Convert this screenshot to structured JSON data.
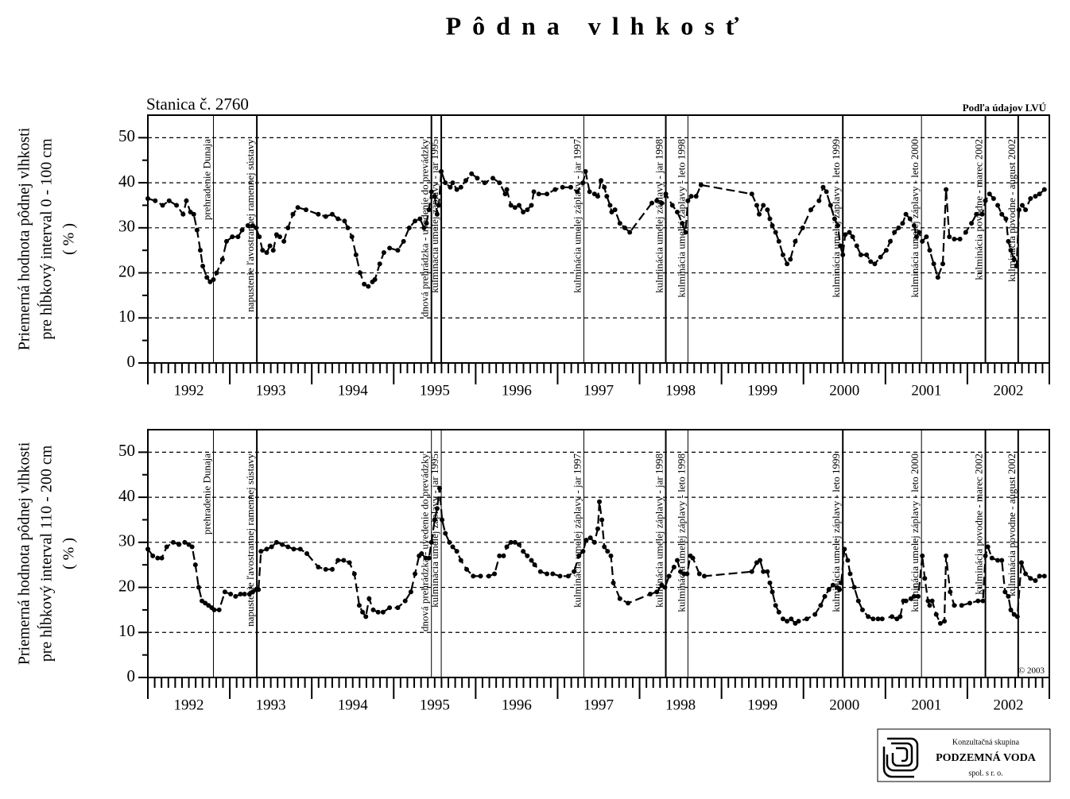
{
  "title": "Pôdna vlhkosť",
  "logo": {
    "line1": "Konzultačná skupina",
    "line2": "PODZEMNÁ VODA",
    "line3": "spol. s r. o."
  },
  "chart_data": [
    {
      "type": "line",
      "station": "Stanica č. 2760",
      "source": "Podľa údajov LVÚ",
      "y_label": [
        "Priemerná hodnota pôdnej vlhkosti",
        "pre hĺbkový interval 0 - 100 cm",
        "( % )"
      ],
      "xlim": [
        1992,
        2003
      ],
      "ylim": [
        0,
        55
      ],
      "yticks": [
        0,
        10,
        20,
        30,
        40,
        50
      ],
      "grid": true,
      "color": "#000000",
      "xticks": [
        {
          "value": 1992.5,
          "label": "1992"
        },
        {
          "value": 1993.5,
          "label": "1993"
        },
        {
          "value": 1994.5,
          "label": "1994"
        },
        {
          "value": 1995.5,
          "label": "1995"
        },
        {
          "value": 1996.5,
          "label": "1996"
        },
        {
          "value": 1997.5,
          "label": "1997"
        },
        {
          "value": 1998.5,
          "label": "1998"
        },
        {
          "value": 1999.5,
          "label": "1999"
        },
        {
          "value": 2000.5,
          "label": "2000"
        },
        {
          "value": 2001.5,
          "label": "2001"
        },
        {
          "value": 2002.5,
          "label": "2002"
        }
      ],
      "events": [
        {
          "x": 1992.8,
          "label": "prehradenie Dunaja",
          "width": 1
        },
        {
          "x": 1993.33,
          "label": "napustenie ľavostrannej ramennej sústavy",
          "width": 2
        },
        {
          "x": 1995.46,
          "label": "dnová prehrádzka - uvedenie do prevádzky",
          "width": 2
        },
        {
          "x": 1995.58,
          "label": "kulminácia umelej záplavy - jar 1995",
          "width": 2
        },
        {
          "x": 1997.32,
          "label": "kulminácia umelej záplavy - jar 1997",
          "width": 1
        },
        {
          "x": 1998.32,
          "label": "kulminácia umelej záplavy - jar 1998",
          "width": 2
        },
        {
          "x": 1998.59,
          "label": "kulminácia umelej záplavy - leto 1998",
          "width": 1
        },
        {
          "x": 2000.48,
          "label": "kulminácia umelej záplavy - leto 1999",
          "width": 2
        },
        {
          "x": 2001.44,
          "label": "kulminácia umelej záplavy - leto 2000",
          "width": 1
        },
        {
          "x": 2002.22,
          "label": "kulminácia povodne - marec 2002",
          "width": 2
        },
        {
          "x": 2002.62,
          "label": "kulminácia povodne - august 2002",
          "width": 2
        }
      ],
      "x": [
        1992.0,
        1992.09,
        1992.18,
        1992.26,
        1992.35,
        1992.43,
        1992.47,
        1992.52,
        1992.56,
        1992.6,
        1992.64,
        1992.67,
        1992.72,
        1992.76,
        1992.8,
        1992.84,
        1992.91,
        1992.96,
        1993.03,
        1993.1,
        1993.15,
        1993.22,
        1993.28,
        1993.32,
        1993.36,
        1993.4,
        1993.45,
        1993.49,
        1993.53,
        1993.57,
        1993.61,
        1993.66,
        1993.71,
        1993.77,
        1993.83,
        1993.93,
        1994.08,
        1994.17,
        1994.25,
        1994.32,
        1994.4,
        1994.44,
        1994.49,
        1994.54,
        1994.59,
        1994.64,
        1994.69,
        1994.74,
        1994.77,
        1994.83,
        1994.88,
        1994.95,
        1995.05,
        1995.12,
        1995.19,
        1995.26,
        1995.32,
        1995.37,
        1995.4,
        1995.43,
        1995.46,
        1995.5,
        1995.53,
        1995.55,
        1995.58,
        1995.63,
        1995.69,
        1995.72,
        1995.77,
        1995.82,
        1995.88,
        1995.95,
        1996.02,
        1996.11,
        1996.21,
        1996.29,
        1996.36,
        1996.38,
        1996.43,
        1996.48,
        1996.53,
        1996.58,
        1996.63,
        1996.68,
        1996.71,
        1996.77,
        1996.87,
        1996.97,
        1997.06,
        1997.16,
        1997.24,
        1997.31,
        1997.34,
        1997.39,
        1997.45,
        1997.49,
        1997.53,
        1997.57,
        1997.6,
        1997.64,
        1997.66,
        1997.7,
        1997.76,
        1997.82,
        1997.88,
        1998.15,
        1998.21,
        1998.27,
        1998.32,
        1998.4,
        1998.46,
        1998.52,
        1998.56,
        1998.59,
        1998.63,
        1998.69,
        1998.75,
        1999.37,
        1999.43,
        1999.46,
        1999.51,
        1999.56,
        1999.59,
        1999.62,
        1999.66,
        1999.7,
        1999.75,
        1999.8,
        1999.84,
        1999.9,
        1999.99,
        2000.09,
        2000.19,
        2000.24,
        2000.28,
        2000.33,
        2000.38,
        2000.42,
        2000.45,
        2000.48,
        2000.51,
        2000.56,
        2000.6,
        2000.65,
        2000.7,
        2000.77,
        2000.82,
        2000.87,
        2000.94,
        2001.01,
        2001.06,
        2001.11,
        2001.16,
        2001.21,
        2001.25,
        2001.3,
        2001.35,
        2001.38,
        2001.41,
        2001.45,
        2001.5,
        2001.54,
        2001.59,
        2001.64,
        2001.7,
        2001.74,
        2001.78,
        2001.84,
        2001.91,
        2001.98,
        2002.05,
        2002.11,
        2002.18,
        2002.22,
        2002.27,
        2002.32,
        2002.37,
        2002.42,
        2002.47,
        2002.5,
        2002.53,
        2002.57,
        2002.6,
        2002.63,
        2002.67,
        2002.71,
        2002.77,
        2002.83,
        2002.88,
        2002.94
      ],
      "values": [
        36.5,
        36,
        35,
        36,
        35,
        33,
        36,
        33.5,
        33,
        29.5,
        25,
        21.5,
        19,
        18,
        18.5,
        20,
        23,
        27,
        28,
        28,
        29.5,
        30.5,
        30.5,
        30,
        28,
        25,
        24.5,
        26,
        25,
        28.5,
        28,
        27,
        30,
        33,
        34.5,
        34,
        33,
        32.5,
        33,
        32,
        31.5,
        30,
        28,
        24,
        20,
        17.5,
        17,
        18,
        18.5,
        22,
        24.5,
        25.5,
        25,
        27,
        30,
        31.5,
        32,
        30,
        31,
        34,
        38,
        37,
        33,
        35,
        42.5,
        40,
        39,
        40,
        38.5,
        39,
        40.5,
        42,
        41,
        40,
        41,
        40,
        37.5,
        38.5,
        35,
        34.5,
        35,
        33.5,
        34,
        35,
        38,
        37.5,
        37.5,
        38.5,
        39,
        39,
        38,
        40,
        42.5,
        38,
        37.5,
        37,
        40.5,
        39,
        37,
        35,
        33.5,
        34,
        31,
        30,
        29,
        35.5,
        36,
        35.5,
        37.5,
        35,
        33.5,
        31,
        29,
        36,
        37,
        37,
        39.5,
        37.5,
        35,
        33,
        35,
        34,
        32,
        30.5,
        29,
        27,
        24,
        22,
        23,
        27,
        30,
        34,
        36,
        39,
        38,
        35,
        32,
        30.5,
        26,
        24,
        28.5,
        29,
        28,
        26,
        24,
        24,
        22.5,
        22,
        23.5,
        25,
        27,
        29,
        30,
        31,
        33,
        32,
        30.5,
        28,
        29,
        27,
        28,
        25,
        22,
        19,
        22,
        38.5,
        28,
        27.5,
        27.5,
        29,
        31,
        33,
        33,
        36,
        37.5,
        36.5,
        35,
        33,
        32,
        27,
        25,
        23,
        21.5,
        34,
        35,
        34,
        36.5,
        37,
        37.5,
        38.5
      ]
    },
    {
      "type": "line",
      "copyright": "© 2003",
      "y_label": [
        "Priemerná hodnota pôdnej vlhkosti",
        "pre hĺbkový interval 110 - 200 cm",
        "( % )"
      ],
      "xlim": [
        1992,
        2003
      ],
      "ylim": [
        0,
        55
      ],
      "yticks": [
        0,
        10,
        20,
        30,
        40,
        50
      ],
      "grid": true,
      "color": "#000000",
      "xticks": [
        {
          "value": 1992.5,
          "label": "1992"
        },
        {
          "value": 1993.5,
          "label": "1993"
        },
        {
          "value": 1994.5,
          "label": "1994"
        },
        {
          "value": 1995.5,
          "label": "1995"
        },
        {
          "value": 1996.5,
          "label": "1996"
        },
        {
          "value": 1997.5,
          "label": "1997"
        },
        {
          "value": 1998.5,
          "label": "1998"
        },
        {
          "value": 1999.5,
          "label": "1999"
        },
        {
          "value": 2000.5,
          "label": "2000"
        },
        {
          "value": 2001.5,
          "label": "2001"
        },
        {
          "value": 2002.5,
          "label": "2002"
        }
      ],
      "events": [
        {
          "x": 1992.8,
          "label": "prehradenie Dunaja",
          "width": 1
        },
        {
          "x": 1993.33,
          "label": "napustenie ľavostrannej ramennej sústavy",
          "width": 2
        },
        {
          "x": 1995.46,
          "label": "dnová prehrádzka - uvedenie do prevádzky",
          "width": 1
        },
        {
          "x": 1995.58,
          "label": "kulminácia umelej záplavy - jar 1995",
          "width": 1
        },
        {
          "x": 1997.32,
          "label": "kulminácia umelej záplavy - jar 1997",
          "width": 1
        },
        {
          "x": 1998.32,
          "label": "kulminácia umelej záplavy - jar 1998",
          "width": 2
        },
        {
          "x": 1998.59,
          "label": "kulminácia umelej záplavy - leto 1998",
          "width": 1
        },
        {
          "x": 2000.48,
          "label": "kulminácia umelej záplavy - leto 1999",
          "width": 2
        },
        {
          "x": 2001.44,
          "label": "kulminácia umelej záplavy - leto 2000",
          "width": 1
        },
        {
          "x": 2002.22,
          "label": "kulminácia povodne - marec 2002",
          "width": 2
        },
        {
          "x": 2002.62,
          "label": "kulminácia povodne - august 2002",
          "width": 2
        }
      ],
      "x": [
        1992.0,
        1992.06,
        1992.12,
        1992.17,
        1992.23,
        1992.31,
        1992.38,
        1992.45,
        1992.5,
        1992.54,
        1992.58,
        1992.62,
        1992.66,
        1992.7,
        1992.74,
        1992.78,
        1992.81,
        1992.87,
        1992.94,
        1993.01,
        1993.07,
        1993.13,
        1993.18,
        1993.24,
        1993.28,
        1993.32,
        1993.35,
        1993.38,
        1993.45,
        1993.51,
        1993.57,
        1993.64,
        1993.71,
        1993.78,
        1993.86,
        1993.94,
        1994.08,
        1994.17,
        1994.25,
        1994.32,
        1994.39,
        1994.46,
        1994.52,
        1994.58,
        1994.62,
        1994.66,
        1994.7,
        1994.75,
        1994.81,
        1994.87,
        1994.95,
        1995.05,
        1995.14,
        1995.21,
        1995.26,
        1995.31,
        1995.34,
        1995.39,
        1995.43,
        1995.46,
        1995.5,
        1995.53,
        1995.56,
        1995.59,
        1995.63,
        1995.68,
        1995.72,
        1995.77,
        1995.82,
        1995.89,
        1995.97,
        1996.06,
        1996.16,
        1996.23,
        1996.29,
        1996.34,
        1996.38,
        1996.43,
        1996.48,
        1996.53,
        1996.58,
        1996.63,
        1996.68,
        1996.72,
        1996.79,
        1996.87,
        1996.94,
        1997.03,
        1997.13,
        1997.2,
        1997.26,
        1997.31,
        1997.35,
        1997.4,
        1997.45,
        1997.49,
        1997.51,
        1997.54,
        1997.57,
        1997.61,
        1997.65,
        1997.68,
        1997.76,
        1997.86,
        1998.13,
        1998.21,
        1998.27,
        1998.31,
        1998.36,
        1998.42,
        1998.46,
        1998.5,
        1998.54,
        1998.58,
        1998.62,
        1998.65,
        1998.73,
        1998.79,
        1999.37,
        1999.43,
        1999.47,
        1999.51,
        1999.56,
        1999.59,
        1999.62,
        1999.66,
        1999.7,
        1999.75,
        1999.8,
        1999.85,
        1999.9,
        1999.94,
        2000.04,
        2000.14,
        2000.21,
        2000.26,
        2000.31,
        2000.36,
        2000.41,
        2000.44,
        2000.46,
        2000.5,
        2000.54,
        2000.57,
        2000.62,
        2000.67,
        2000.72,
        2000.79,
        2000.85,
        2000.91,
        2000.96,
        2001.08,
        2001.14,
        2001.18,
        2001.22,
        2001.25,
        2001.31,
        2001.35,
        2001.4,
        2001.45,
        2001.48,
        2001.52,
        2001.54,
        2001.57,
        2001.62,
        2001.67,
        2001.72,
        2001.74,
        2001.79,
        2001.84,
        2001.93,
        2002.03,
        2002.13,
        2002.19,
        2002.22,
        2002.25,
        2002.3,
        2002.37,
        2002.42,
        2002.46,
        2002.5,
        2002.53,
        2002.57,
        2002.61,
        2002.66,
        2002.71,
        2002.77,
        2002.83,
        2002.88,
        2002.94
      ],
      "values": [
        28.5,
        27,
        26.5,
        26.5,
        29,
        30,
        29.5,
        30,
        29.5,
        29,
        25,
        20,
        17,
        16.5,
        16,
        15.5,
        15,
        15,
        19,
        18.5,
        18,
        18.5,
        18.5,
        18.5,
        19,
        19.5,
        19.5,
        28,
        28.5,
        29,
        30,
        29.5,
        29,
        28.5,
        28.5,
        27.5,
        24.5,
        24,
        24,
        26,
        26,
        25.5,
        23,
        16,
        14.5,
        13.5,
        17.5,
        15,
        14.5,
        14.5,
        15.5,
        15.5,
        17,
        19,
        23,
        27,
        27.5,
        26.5,
        26.5,
        30,
        35,
        37.5,
        42,
        35,
        32,
        30,
        29,
        28,
        26,
        24,
        22.5,
        22.5,
        22.5,
        23,
        27,
        27,
        29,
        30,
        30,
        29.5,
        28,
        27,
        26,
        25,
        23.5,
        23,
        23,
        22.5,
        22.5,
        23.5,
        27,
        28,
        30.5,
        31,
        30,
        33,
        39,
        35,
        29,
        28,
        27,
        21,
        17.5,
        16.5,
        18.5,
        19,
        20.5,
        20,
        22.5,
        24.5,
        26,
        23.5,
        23,
        23,
        27,
        26.5,
        23,
        22.5,
        23.5,
        25.5,
        26,
        23.5,
        23.5,
        21,
        19,
        16,
        14.5,
        13,
        12.5,
        13,
        12,
        12.5,
        13,
        14,
        16,
        18,
        19.5,
        20.5,
        20,
        19.5,
        21,
        28.5,
        26,
        23,
        20,
        17,
        15,
        13.5,
        13,
        13,
        13,
        13.5,
        13,
        13.5,
        17,
        17,
        17.5,
        18,
        18,
        27,
        22,
        17,
        16,
        17,
        14,
        12,
        12.5,
        27,
        19,
        16,
        16,
        16.5,
        17,
        17,
        27,
        29,
        26.5,
        26,
        26,
        19,
        18,
        15,
        14,
        13.5,
        25.5,
        23,
        22,
        21.5,
        22.5,
        22.5
      ]
    }
  ]
}
